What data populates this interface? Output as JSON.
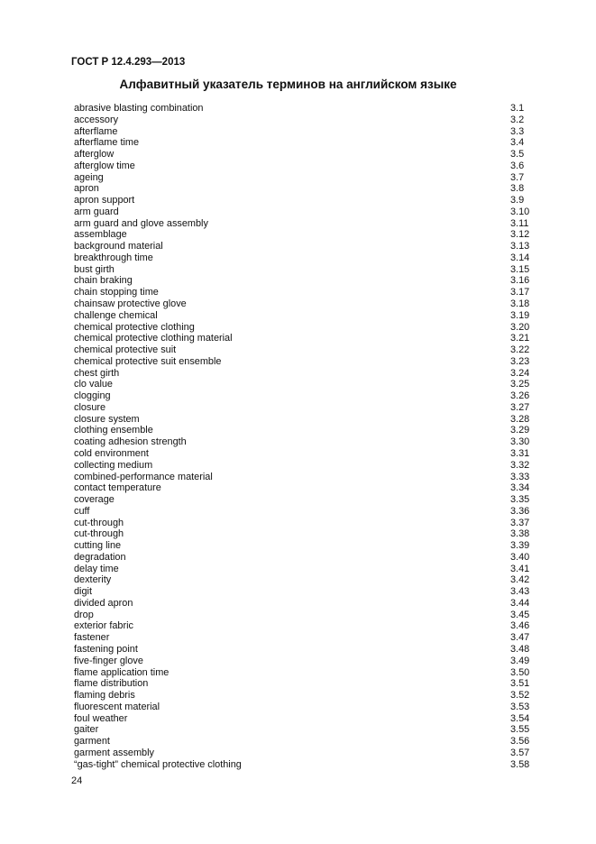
{
  "header": {
    "doc_code": "ГОСТ Р 12.4.293—2013",
    "title": "Алфавитный указатель терминов на английском языке"
  },
  "items": [
    {
      "term": "abrasive blasting combination",
      "ref": "3.1"
    },
    {
      "term": "accessory",
      "ref": "3.2"
    },
    {
      "term": "afterflame",
      "ref": "3.3"
    },
    {
      "term": "afterflame time",
      "ref": "3.4"
    },
    {
      "term": "afterglow",
      "ref": "3.5"
    },
    {
      "term": "afterglow time",
      "ref": "3.6"
    },
    {
      "term": "ageing",
      "ref": "3.7"
    },
    {
      "term": "apron",
      "ref": "3.8"
    },
    {
      "term": "apron support",
      "ref": "3.9"
    },
    {
      "term": "arm guard",
      "ref": "3.10"
    },
    {
      "term": "arm guard and glove assembly",
      "ref": "3.11"
    },
    {
      "term": "assemblage",
      "ref": "3.12"
    },
    {
      "term": "background material",
      "ref": "3.13"
    },
    {
      "term": "breakthrough time",
      "ref": "3.14"
    },
    {
      "term": "bust girth",
      "ref": "3.15"
    },
    {
      "term": "chain braking",
      "ref": "3.16"
    },
    {
      "term": "chain stopping time",
      "ref": "3.17"
    },
    {
      "term": "chainsaw protective glove",
      "ref": "3.18"
    },
    {
      "term": "challenge chemical",
      "ref": "3.19"
    },
    {
      "term": "chemical protective clothing",
      "ref": "3.20"
    },
    {
      "term": "chemical protective clothing material",
      "ref": "3.21"
    },
    {
      "term": "chemical protective suit",
      "ref": "3.22"
    },
    {
      "term": "chemical protective suit ensemble",
      "ref": "3.23"
    },
    {
      "term": "chest girth",
      "ref": "3.24"
    },
    {
      "term": "clo value",
      "ref": "3.25"
    },
    {
      "term": "clogging",
      "ref": "3.26"
    },
    {
      "term": "closure",
      "ref": "3.27"
    },
    {
      "term": "closure system",
      "ref": "3.28"
    },
    {
      "term": "clothing ensemble",
      "ref": "3.29"
    },
    {
      "term": "coating adhesion strength",
      "ref": "3.30"
    },
    {
      "term": "cold environment",
      "ref": "3.31"
    },
    {
      "term": "collecting medium",
      "ref": "3.32"
    },
    {
      "term": "combined-performance material",
      "ref": "3.33"
    },
    {
      "term": "contact temperature",
      "ref": "3.34"
    },
    {
      "term": "coverage",
      "ref": "3.35"
    },
    {
      "term": "cuff",
      "ref": "3.36"
    },
    {
      "term": "cut-through",
      "ref": "3.37"
    },
    {
      "term": "cut-through",
      "ref": "3.38"
    },
    {
      "term": "cutting line",
      "ref": "3.39"
    },
    {
      "term": "degradation",
      "ref": "3.40"
    },
    {
      "term": "delay time",
      "ref": "3.41"
    },
    {
      "term": "dexterity",
      "ref": "3.42"
    },
    {
      "term": "digit",
      "ref": "3.43"
    },
    {
      "term": "divided apron",
      "ref": "3.44"
    },
    {
      "term": "drop",
      "ref": "3.45"
    },
    {
      "term": "exterior fabric",
      "ref": "3.46"
    },
    {
      "term": "fastener",
      "ref": "3.47"
    },
    {
      "term": "fastening point",
      "ref": "3.48"
    },
    {
      "term": "five-finger glove",
      "ref": "3.49"
    },
    {
      "term": "flame application time",
      "ref": "3.50"
    },
    {
      "term": "flame distribution",
      "ref": "3.51"
    },
    {
      "term": "flaming debris",
      "ref": "3.52"
    },
    {
      "term": "fluorescent material",
      "ref": "3.53"
    },
    {
      "term": "foul weather",
      "ref": "3.54"
    },
    {
      "term": "gaiter",
      "ref": "3.55"
    },
    {
      "term": "garment",
      "ref": "3.56"
    },
    {
      "term": "garment assembly",
      "ref": "3.57"
    },
    {
      "term": "“gas-tight” chemical protective clothing",
      "ref": "3.58"
    }
  ],
  "footer": {
    "page_number": "24"
  }
}
